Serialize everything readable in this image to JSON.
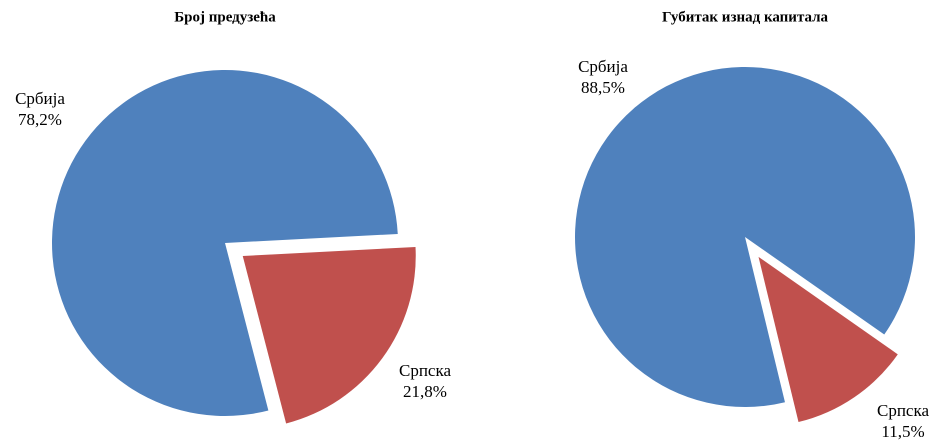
{
  "chart_data": [
    {
      "type": "pie",
      "title": "Број предузећа",
      "categories": [
        "Србија",
        "Српска"
      ],
      "values": [
        78.2,
        21.8
      ],
      "value_labels": [
        "78,2%",
        "21,8%"
      ],
      "colors": [
        "#4f81bd",
        "#c0504d"
      ]
    },
    {
      "type": "pie",
      "title": "Губитак изнад капитала",
      "categories": [
        "Србија",
        "Српска"
      ],
      "values": [
        88.5,
        11.5
      ],
      "value_labels": [
        "88,5%",
        "11,5%"
      ],
      "colors": [
        "#4f81bd",
        "#c0504d"
      ]
    }
  ]
}
